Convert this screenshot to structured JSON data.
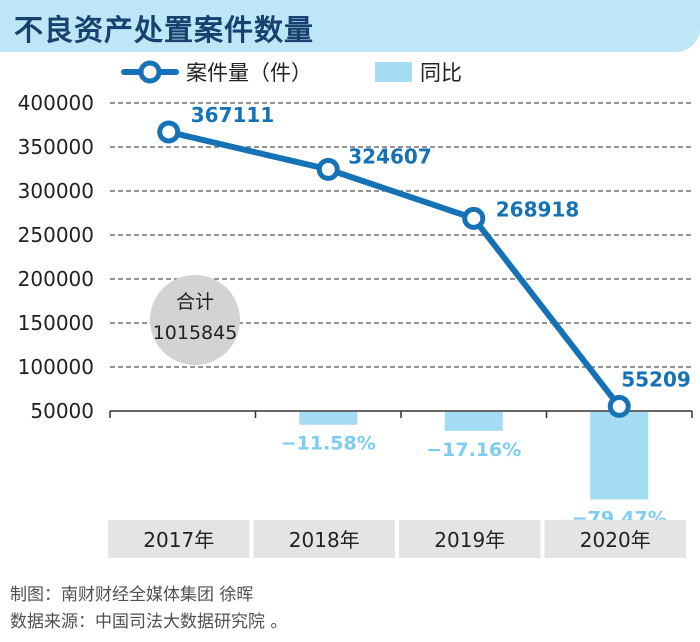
{
  "title": "不良资产处置案件数量",
  "legend": {
    "line_label": "案件量（件）",
    "bar_label": "同比"
  },
  "colors": {
    "line": "#1572b6",
    "bar": "#a4dcf3",
    "pct_text": "#7ecdf0",
    "grid": "#555555",
    "bubble": "#d3d3d3",
    "year_band": "#e4e4e4"
  },
  "total": {
    "label": "合计",
    "value": "1015845"
  },
  "chart_data": {
    "type": "line+bar",
    "categories": [
      "2017年",
      "2018年",
      "2019年",
      "2020年"
    ],
    "series": [
      {
        "name": "案件量（件）",
        "type": "line",
        "values": [
          367111,
          324607,
          268918,
          55209
        ],
        "labels": [
          "367111",
          "324607",
          "268918",
          "55209"
        ]
      },
      {
        "name": "同比",
        "type": "bar",
        "values": [
          null,
          -11.58,
          -17.16,
          -79.47
        ],
        "labels": [
          "",
          "−11.58%",
          "−17.16%",
          "−79.47%"
        ]
      }
    ],
    "y_ticks": [
      400000,
      350000,
      300000,
      250000,
      200000,
      150000,
      100000,
      50000
    ],
    "y_tick_labels": [
      "400000",
      "350000",
      "300000",
      "250000",
      "200000",
      "150000",
      "100000",
      "50000"
    ],
    "ylim": [
      50000,
      400000
    ],
    "grid": true,
    "legend_position": "top"
  },
  "credits": {
    "line1": "制图：南财财经全媒体集团 徐晖",
    "line2": "数据来源：中国司法大数据研究院 。"
  }
}
